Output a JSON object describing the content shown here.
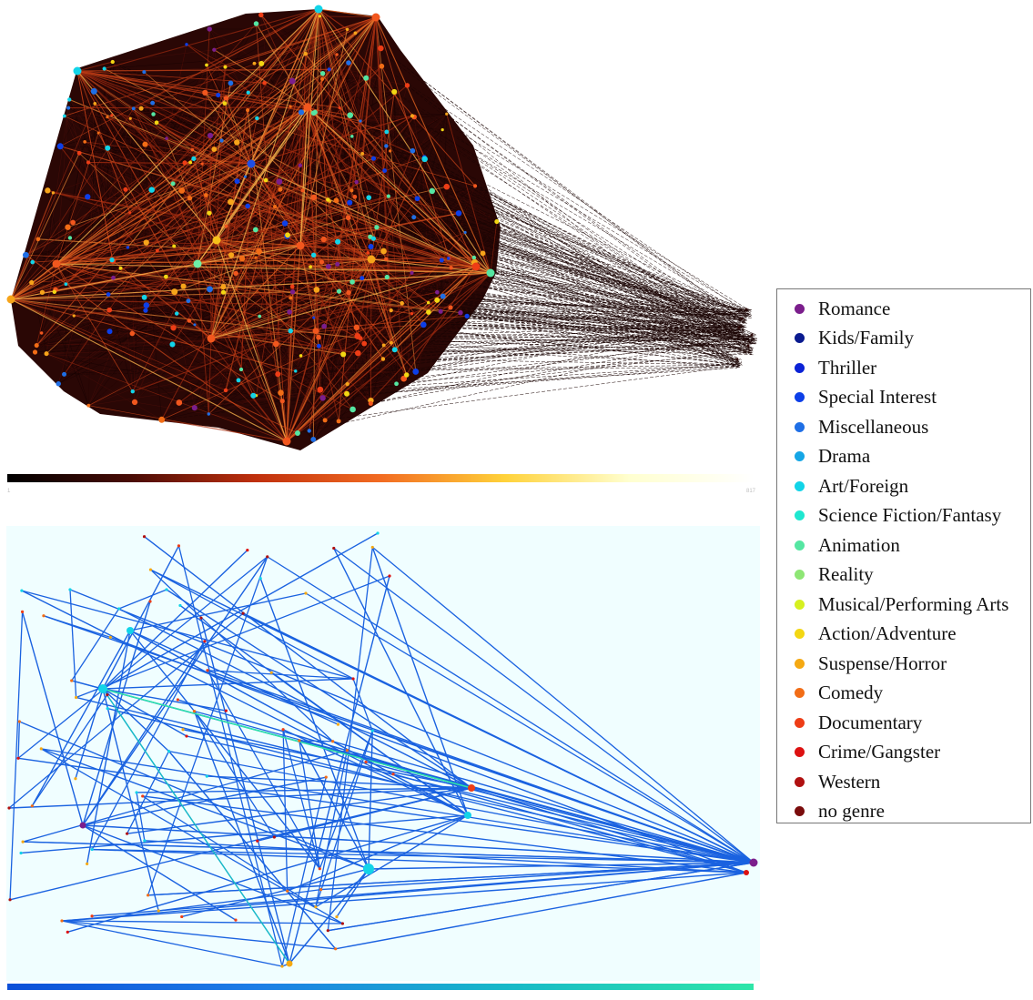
{
  "legend": {
    "items": [
      {
        "label": "Romance",
        "color": "#7b1e8c"
      },
      {
        "label": "Kids/Family",
        "color": "#0a1a8f"
      },
      {
        "label": "Thriller",
        "color": "#0b22d6"
      },
      {
        "label": "Special Interest",
        "color": "#0d3fe8"
      },
      {
        "label": "Miscellaneous",
        "color": "#1f6fe6"
      },
      {
        "label": "Drama",
        "color": "#15a6e6"
      },
      {
        "label": "Art/Foreign",
        "color": "#12d4e8"
      },
      {
        "label": "Science Fiction/Fantasy",
        "color": "#1fe7d0"
      },
      {
        "label": "Animation",
        "color": "#55e6a2"
      },
      {
        "label": "Reality",
        "color": "#8ee675"
      },
      {
        "label": "Musical/Performing Arts",
        "color": "#d6f020"
      },
      {
        "label": "Action/Adventure",
        "color": "#f3d713"
      },
      {
        "label": "Suspense/Horror",
        "color": "#f5a912"
      },
      {
        "label": "Comedy",
        "color": "#f26d16"
      },
      {
        "label": "Documentary",
        "color": "#ee3d16"
      },
      {
        "label": "Crime/Gangster",
        "color": "#dd1111"
      },
      {
        "label": "Western",
        "color": "#b01010"
      },
      {
        "label": "no genre",
        "color": "#7a0c0c"
      }
    ]
  },
  "top_colorbar": {
    "min_label": "1",
    "max_label": "817",
    "colors": [
      "#000000",
      "#4a0c06",
      "#c0300d",
      "#f26b22",
      "#ffd23a",
      "#ffffd0",
      "#ffffff"
    ]
  },
  "bottom_colorbar": {
    "colors": [
      "#0d4fd8",
      "#1f7de6",
      "#19b8c8",
      "#2fe6a8"
    ]
  }
}
